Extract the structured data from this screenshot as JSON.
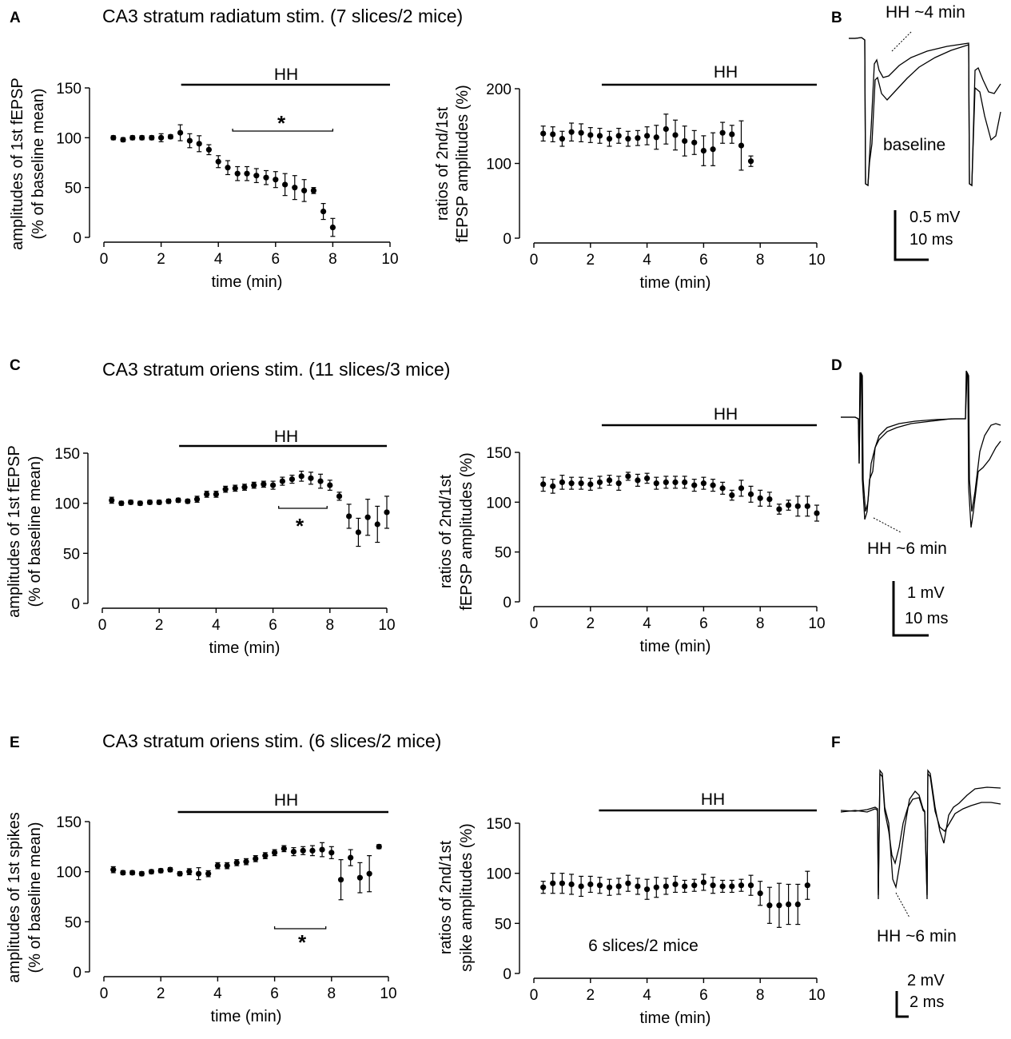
{
  "panels": [
    {
      "letter": "A",
      "title": "CA3 stratum radiatum stim. (7 slices/2 mice)",
      "hh_label": "HH",
      "hh_label_right": "HH",
      "star": "*",
      "left_ylabel": [
        "amplitudes of 1st fEPSP",
        "(% of baseline mean)"
      ],
      "right_ylabel": [
        "ratios of 2nd/1st",
        "fEPSP amplitudes (%)"
      ]
    },
    {
      "letter": "C",
      "title": "CA3 stratum oriens stim. (11 slices/3 mice)",
      "hh_label": "HH",
      "hh_label_right": "HH",
      "star": "*",
      "left_ylabel": [
        "amplitudes of 1st fEPSP",
        "(% of baseline mean)"
      ],
      "right_ylabel": [
        "ratios of 2nd/1st",
        "fEPSP amplitudes (%)"
      ]
    },
    {
      "letter": "E",
      "title": "CA3 stratum oriens stim. (6 slices/2 mice)",
      "hh_label": "HH",
      "hh_label_right": "HH",
      "star": "*",
      "left_ylabel": [
        "amplitudes of 1st spikes",
        "(% of baseline mean)"
      ],
      "right_ylabel": [
        "ratios of 2nd/1st",
        "spike amplitudes (%)"
      ],
      "right_annotation": "6 slices/2 mice"
    }
  ],
  "chart_data": [
    {
      "id": "A-left",
      "type": "scatter",
      "xlabel": "time (min)",
      "ylabel": "amplitudes of 1st fEPSP (% of baseline mean)",
      "xlim": [
        0,
        10
      ],
      "ylim": [
        0,
        150
      ],
      "xticks": [
        0,
        2,
        4,
        6,
        8,
        10
      ],
      "yticks": [
        0,
        50,
        100,
        150
      ],
      "hh_start": 2.7,
      "hh_end": 10,
      "significance": {
        "from": 4.5,
        "to": 8.0,
        "label": "*"
      },
      "x": [
        0.33,
        0.67,
        1.0,
        1.33,
        1.67,
        2.0,
        2.33,
        2.67,
        3.0,
        3.33,
        3.67,
        4.0,
        4.33,
        4.67,
        5.0,
        5.33,
        5.67,
        6.0,
        6.33,
        6.67,
        7.0,
        7.33,
        7.67,
        8.0
      ],
      "y": [
        100,
        98,
        100,
        100,
        100,
        100,
        101,
        105,
        97,
        94,
        88,
        76,
        70,
        64,
        64,
        62,
        60,
        58,
        53,
        50,
        47,
        47,
        26,
        10
      ],
      "err": [
        2,
        2,
        2,
        2,
        2,
        4,
        2,
        8,
        7,
        8,
        5,
        6,
        7,
        7,
        7,
        7,
        7,
        8,
        11,
        12,
        11,
        3,
        8,
        9
      ]
    },
    {
      "id": "A-right",
      "type": "scatter",
      "xlabel": "time (min)",
      "ylabel": "ratios of 2nd/1st fEPSP amplitudes (%)",
      "xlim": [
        0,
        10
      ],
      "ylim": [
        0,
        200
      ],
      "xticks": [
        0,
        2,
        4,
        6,
        8,
        10
      ],
      "yticks": [
        0,
        100,
        200
      ],
      "hh_start": 2.4,
      "hh_end": 10,
      "x": [
        0.33,
        0.67,
        1.0,
        1.33,
        1.67,
        2.0,
        2.33,
        2.67,
        3.0,
        3.33,
        3.67,
        4.0,
        4.33,
        4.67,
        5.0,
        5.33,
        5.67,
        6.0,
        6.33,
        6.67,
        7.0,
        7.33,
        7.67
      ],
      "y": [
        140,
        139,
        133,
        142,
        141,
        138,
        137,
        133,
        137,
        133,
        134,
        137,
        135,
        146,
        138,
        130,
        128,
        117,
        119,
        141,
        139,
        124,
        103
      ],
      "err": [
        10,
        10,
        10,
        12,
        12,
        10,
        10,
        10,
        10,
        10,
        10,
        12,
        16,
        20,
        20,
        20,
        16,
        20,
        22,
        14,
        12,
        33,
        7
      ]
    },
    {
      "id": "C-left",
      "type": "scatter",
      "xlabel": "time (min)",
      "ylabel": "amplitudes of 1st fEPSP (% of baseline mean)",
      "xlim": [
        0,
        10
      ],
      "ylim": [
        0,
        150
      ],
      "xticks": [
        0,
        2,
        4,
        6,
        8,
        10
      ],
      "yticks": [
        0,
        50,
        100,
        150
      ],
      "hh_start": 2.7,
      "hh_end": 10,
      "significance": {
        "from": 6.2,
        "to": 7.9,
        "label": "*"
      },
      "x": [
        0.33,
        0.67,
        1.0,
        1.33,
        1.67,
        2.0,
        2.33,
        2.67,
        3.0,
        3.33,
        3.67,
        4.0,
        4.33,
        4.67,
        5.0,
        5.33,
        5.67,
        6.0,
        6.33,
        6.67,
        7.0,
        7.33,
        7.67,
        8.0,
        8.33,
        8.67,
        9.0,
        9.33,
        9.67,
        10.0
      ],
      "y": [
        103,
        100,
        101,
        100,
        101,
        101,
        102,
        103,
        102,
        104,
        109,
        109,
        114,
        115,
        116,
        118,
        119,
        118,
        122,
        124,
        127,
        125,
        122,
        118,
        107,
        87,
        71,
        86,
        79,
        91
      ],
      "err": [
        3,
        2,
        2,
        2,
        2,
        2,
        2,
        2,
        2,
        3,
        3,
        3,
        3,
        3,
        3,
        3,
        3,
        4,
        4,
        4,
        5,
        6,
        7,
        5,
        4,
        12,
        14,
        18,
        18,
        16
      ]
    },
    {
      "id": "C-right",
      "type": "scatter",
      "xlabel": "time (min)",
      "ylabel": "ratios of 2nd/1st fEPSP amplitudes (%)",
      "xlim": [
        0,
        10
      ],
      "ylim": [
        0,
        150
      ],
      "xticks": [
        0,
        2,
        4,
        6,
        8,
        10
      ],
      "yticks": [
        0,
        50,
        100,
        150
      ],
      "hh_start": 2.4,
      "hh_end": 10,
      "x": [
        0.33,
        0.67,
        1.0,
        1.33,
        1.67,
        2.0,
        2.33,
        2.67,
        3.0,
        3.33,
        3.67,
        4.0,
        4.33,
        4.67,
        5.0,
        5.33,
        5.67,
        6.0,
        6.33,
        6.67,
        7.0,
        7.33,
        7.67,
        8.0,
        8.33,
        8.67,
        9.0,
        9.33,
        9.67,
        10.0
      ],
      "y": [
        118,
        116,
        120,
        119,
        119,
        118,
        120,
        122,
        119,
        126,
        122,
        124,
        119,
        120,
        120,
        120,
        117,
        119,
        117,
        114,
        107,
        114,
        108,
        104,
        103,
        93,
        97,
        96,
        96,
        89
      ],
      "err": [
        7,
        7,
        7,
        6,
        6,
        6,
        6,
        5,
        7,
        4,
        6,
        5,
        6,
        6,
        6,
        6,
        6,
        6,
        6,
        6,
        5,
        8,
        8,
        8,
        7,
        5,
        5,
        10,
        10,
        8
      ]
    },
    {
      "id": "E-left",
      "type": "scatter",
      "xlabel": "time (min)",
      "ylabel": "amplitudes of 1st spikes (% of baseline mean)",
      "xlim": [
        0,
        10
      ],
      "ylim": [
        0,
        150
      ],
      "xticks": [
        0,
        2,
        4,
        6,
        8,
        10
      ],
      "yticks": [
        0,
        50,
        100,
        150
      ],
      "hh_start": 2.6,
      "hh_end": 10,
      "significance": {
        "from": 6.0,
        "to": 7.8,
        "label": "*"
      },
      "x": [
        0.33,
        0.67,
        1.0,
        1.33,
        1.67,
        2.0,
        2.33,
        2.67,
        3.0,
        3.33,
        3.67,
        4.0,
        4.33,
        4.67,
        5.0,
        5.33,
        5.67,
        6.0,
        6.33,
        6.67,
        7.0,
        7.33,
        7.67,
        8.0,
        8.33,
        8.67,
        9.0,
        9.33,
        9.67
      ],
      "y": [
        102,
        99,
        99,
        98,
        100,
        101,
        102,
        98,
        100,
        98,
        98,
        106,
        106,
        109,
        110,
        113,
        116,
        119,
        123,
        120,
        121,
        121,
        122,
        119,
        92,
        114,
        94,
        98,
        125
      ],
      "err": [
        3,
        2,
        2,
        2,
        2,
        2,
        2,
        2,
        3,
        6,
        3,
        3,
        3,
        3,
        3,
        3,
        3,
        3,
        3,
        4,
        4,
        5,
        7,
        6,
        20,
        8,
        15,
        18,
        2
      ]
    },
    {
      "id": "E-right",
      "type": "scatter",
      "xlabel": "time (min)",
      "ylabel": "ratios of 2nd/1st spike amplitudes (%)",
      "xlim": [
        0,
        10
      ],
      "ylim": [
        0,
        150
      ],
      "xticks": [
        0,
        2,
        4,
        6,
        8,
        10
      ],
      "yticks": [
        0,
        50,
        100,
        150
      ],
      "hh_start": 2.3,
      "hh_end": 10,
      "x": [
        0.33,
        0.67,
        1.0,
        1.33,
        1.67,
        2.0,
        2.33,
        2.67,
        3.0,
        3.33,
        3.67,
        4.0,
        4.33,
        4.67,
        5.0,
        5.33,
        5.67,
        6.0,
        6.33,
        6.67,
        7.0,
        7.33,
        7.67,
        8.0,
        8.33,
        8.67,
        9.0,
        9.33,
        9.67
      ],
      "y": [
        86,
        90,
        90,
        89,
        87,
        89,
        88,
        86,
        87,
        90,
        87,
        84,
        86,
        87,
        89,
        87,
        88,
        91,
        88,
        87,
        87,
        88,
        88,
        80,
        68,
        68,
        69,
        69,
        88
      ],
      "err": [
        6,
        10,
        10,
        10,
        10,
        8,
        8,
        8,
        8,
        8,
        8,
        10,
        10,
        8,
        8,
        6,
        6,
        8,
        8,
        6,
        6,
        6,
        10,
        12,
        18,
        22,
        20,
        20,
        14
      ]
    }
  ],
  "traces": [
    {
      "letter": "B",
      "label_top": "HH ~4 min",
      "label_bottom": "baseline",
      "scale_v": "0.5 mV",
      "scale_t": "10 ms"
    },
    {
      "letter": "D",
      "label": "HH ~6 min",
      "scale_v": "1 mV",
      "scale_t": "10 ms"
    },
    {
      "letter": "F",
      "label": "HH ~6 min",
      "scale_v": "2 mV",
      "scale_t": "2 ms"
    }
  ]
}
